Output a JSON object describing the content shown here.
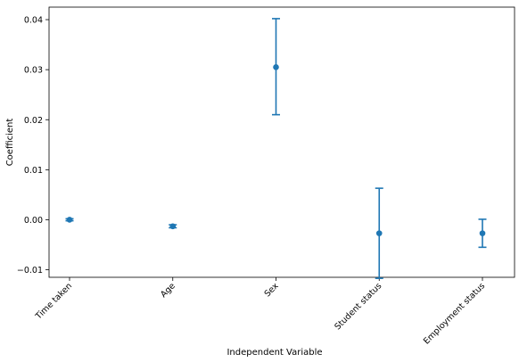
{
  "chart_data": {
    "type": "scatter",
    "subtype": "errorbar",
    "title": "",
    "xlabel": "Independent Variable",
    "ylabel": "Coefficient",
    "categories": [
      "Time taken",
      "Age",
      "Sex",
      "Student status",
      "Employment status"
    ],
    "values": [
      0.0,
      -0.0013,
      0.0305,
      -0.0027,
      -0.0027
    ],
    "error_low": [
      -0.0002,
      -0.0016,
      0.021,
      -0.0117,
      -0.0055
    ],
    "error_high": [
      0.0002,
      -0.001,
      0.0402,
      0.0063,
      0.0001
    ],
    "ylim": [
      -0.0115,
      0.0425
    ],
    "yticks": [
      -0.01,
      0.0,
      0.01,
      0.02,
      0.03,
      0.04
    ],
    "ytick_labels": [
      "−0.01",
      "0.00",
      "0.01",
      "0.02",
      "0.03",
      "0.04"
    ],
    "color": "#1f77b4",
    "grid": false,
    "legend": null
  }
}
